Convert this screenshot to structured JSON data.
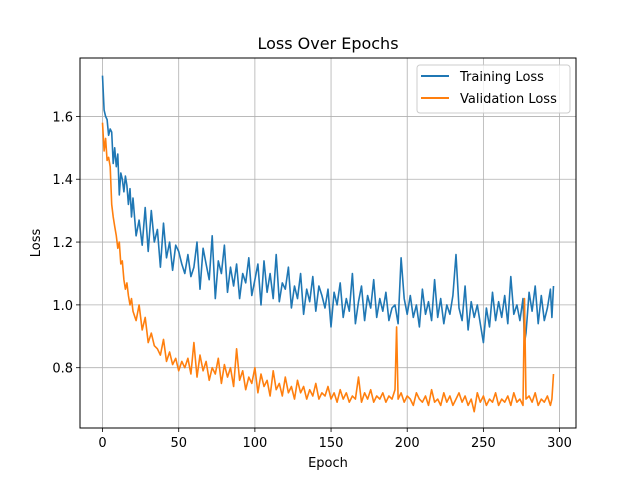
{
  "chart_data": {
    "type": "line",
    "title": "Loss Over Epochs",
    "xlabel": "Epoch",
    "ylabel": "Loss",
    "xlim": [
      -14.8,
      310.8
    ],
    "ylim": [
      0.608,
      1.786
    ],
    "xticks": [
      0,
      50,
      100,
      150,
      200,
      250,
      300
    ],
    "yticks": [
      0.8,
      1.0,
      1.2,
      1.4,
      1.6
    ],
    "xtick_labels": [
      "0",
      "50",
      "100",
      "150",
      "200",
      "250",
      "300"
    ],
    "ytick_labels": [
      "0.8",
      "1.0",
      "1.2",
      "1.4",
      "1.6"
    ],
    "grid": true,
    "legend_position": "top-right",
    "series": [
      {
        "name": "Training Loss",
        "color": "#1f77b4",
        "x": [
          0,
          1,
          2,
          3,
          4,
          5,
          6,
          7,
          8,
          9,
          10,
          11,
          12,
          13,
          14,
          15,
          16,
          17,
          18,
          19,
          20,
          22,
          24,
          26,
          28,
          30,
          32,
          34,
          36,
          38,
          40,
          42,
          44,
          46,
          48,
          50,
          52,
          54,
          56,
          58,
          60,
          62,
          64,
          66,
          68,
          70,
          72,
          74,
          76,
          78,
          80,
          82,
          84,
          86,
          88,
          90,
          92,
          94,
          96,
          98,
          100,
          102,
          104,
          106,
          108,
          110,
          112,
          114,
          116,
          118,
          120,
          122,
          124,
          126,
          128,
          130,
          132,
          134,
          136,
          138,
          140,
          142,
          144,
          146,
          148,
          150,
          152,
          154,
          156,
          158,
          160,
          162,
          164,
          166,
          168,
          170,
          172,
          174,
          176,
          178,
          180,
          182,
          184,
          186,
          188,
          190,
          192,
          194,
          196,
          198,
          200,
          202,
          204,
          206,
          208,
          210,
          212,
          214,
          216,
          218,
          220,
          222,
          224,
          226,
          228,
          230,
          232,
          234,
          236,
          238,
          240,
          242,
          244,
          246,
          248,
          250,
          252,
          254,
          256,
          258,
          260,
          262,
          264,
          266,
          268,
          270,
          272,
          274,
          276,
          277,
          278,
          280,
          282,
          284,
          286,
          288,
          290,
          292,
          294,
          295,
          296
        ],
        "y": [
          1.73,
          1.62,
          1.6,
          1.59,
          1.54,
          1.56,
          1.55,
          1.45,
          1.5,
          1.44,
          1.48,
          1.35,
          1.42,
          1.4,
          1.36,
          1.41,
          1.38,
          1.32,
          1.37,
          1.28,
          1.34,
          1.22,
          1.27,
          1.19,
          1.31,
          1.17,
          1.3,
          1.2,
          1.24,
          1.12,
          1.26,
          1.15,
          1.2,
          1.11,
          1.19,
          1.17,
          1.13,
          1.1,
          1.16,
          1.09,
          1.12,
          1.2,
          1.05,
          1.18,
          1.13,
          1.08,
          1.22,
          1.02,
          1.14,
          1.1,
          1.19,
          1.04,
          1.12,
          1.06,
          1.13,
          1.02,
          1.1,
          1.07,
          1.15,
          1.03,
          1.08,
          1.13,
          1.0,
          1.14,
          1.04,
          1.1,
          1.02,
          1.16,
          1.01,
          1.07,
          1.05,
          1.12,
          0.99,
          1.06,
          1.02,
          1.1,
          0.97,
          1.05,
          1.01,
          1.09,
          0.98,
          1.06,
          1.03,
          0.99,
          1.05,
          0.93,
          1.04,
          1.0,
          1.07,
          0.96,
          1.02,
          0.98,
          1.1,
          0.94,
          1.01,
          1.06,
          0.95,
          1.03,
          0.99,
          1.08,
          0.96,
          1.02,
          0.98,
          1.04,
          0.95,
          0.99,
          1.0,
          0.94,
          1.15,
          1.02,
          0.97,
          1.03,
          0.96,
          1.0,
          0.93,
          1.05,
          0.97,
          1.01,
          0.95,
          1.08,
          0.96,
          1.02,
          0.94,
          1.0,
          0.97,
          1.03,
          1.16,
          0.99,
          0.95,
          1.06,
          0.92,
          1.01,
          0.96,
          1.0,
          0.94,
          0.88,
          0.99,
          0.93,
          1.04,
          0.95,
          1.01,
          0.96,
          1.03,
          0.94,
          1.09,
          0.97,
          1.0,
          0.95,
          1.02,
          0.88,
          0.91,
          1.04,
          0.98,
          1.06,
          0.94,
          1.03,
          0.95,
          0.99,
          1.05,
          0.96,
          1.06
        ]
      },
      {
        "name": "Validation Loss",
        "color": "#ff7f0e",
        "x": [
          0,
          1,
          2,
          3,
          4,
          5,
          6,
          7,
          8,
          9,
          10,
          11,
          12,
          13,
          14,
          15,
          16,
          17,
          18,
          19,
          20,
          22,
          24,
          26,
          28,
          30,
          32,
          34,
          36,
          38,
          40,
          42,
          44,
          46,
          48,
          50,
          52,
          54,
          56,
          58,
          60,
          62,
          64,
          66,
          68,
          70,
          72,
          74,
          76,
          78,
          80,
          82,
          84,
          86,
          88,
          90,
          92,
          94,
          96,
          98,
          100,
          102,
          104,
          106,
          108,
          110,
          112,
          114,
          116,
          118,
          120,
          122,
          124,
          126,
          128,
          130,
          132,
          134,
          136,
          138,
          140,
          142,
          144,
          146,
          148,
          150,
          152,
          154,
          156,
          158,
          160,
          162,
          164,
          166,
          168,
          170,
          172,
          174,
          176,
          178,
          180,
          182,
          184,
          186,
          188,
          190,
          192,
          193,
          194,
          196,
          198,
          200,
          202,
          204,
          206,
          208,
          210,
          212,
          214,
          216,
          218,
          220,
          222,
          224,
          226,
          228,
          230,
          232,
          234,
          236,
          238,
          240,
          242,
          244,
          246,
          248,
          250,
          252,
          254,
          256,
          258,
          260,
          262,
          264,
          266,
          268,
          270,
          272,
          274,
          276,
          277,
          278,
          280,
          282,
          284,
          286,
          288,
          290,
          292,
          294,
          295,
          296
        ],
        "y": [
          1.58,
          1.49,
          1.53,
          1.46,
          1.47,
          1.44,
          1.32,
          1.28,
          1.25,
          1.22,
          1.18,
          1.2,
          1.13,
          1.14,
          1.08,
          1.05,
          1.07,
          1.03,
          1.0,
          1.02,
          0.98,
          0.95,
          1.0,
          0.92,
          0.96,
          0.88,
          0.91,
          0.87,
          0.86,
          0.84,
          0.89,
          0.82,
          0.85,
          0.81,
          0.83,
          0.79,
          0.82,
          0.8,
          0.83,
          0.78,
          0.88,
          0.77,
          0.84,
          0.79,
          0.82,
          0.76,
          0.8,
          0.78,
          0.83,
          0.75,
          0.81,
          0.77,
          0.8,
          0.74,
          0.86,
          0.76,
          0.79,
          0.73,
          0.77,
          0.75,
          0.8,
          0.72,
          0.78,
          0.74,
          0.76,
          0.71,
          0.79,
          0.73,
          0.75,
          0.71,
          0.77,
          0.72,
          0.74,
          0.7,
          0.76,
          0.72,
          0.74,
          0.7,
          0.73,
          0.71,
          0.75,
          0.7,
          0.72,
          0.71,
          0.74,
          0.7,
          0.72,
          0.69,
          0.73,
          0.7,
          0.72,
          0.69,
          0.71,
          0.7,
          0.77,
          0.69,
          0.72,
          0.7,
          0.73,
          0.69,
          0.71,
          0.7,
          0.72,
          0.69,
          0.71,
          0.7,
          0.73,
          0.93,
          0.7,
          0.72,
          0.69,
          0.71,
          0.7,
          0.68,
          0.72,
          0.7,
          0.69,
          0.71,
          0.68,
          0.73,
          0.69,
          0.7,
          0.68,
          0.72,
          0.69,
          0.71,
          0.68,
          0.7,
          0.72,
          0.69,
          0.71,
          0.68,
          0.7,
          0.66,
          0.72,
          0.69,
          0.71,
          0.68,
          0.7,
          0.69,
          0.72,
          0.68,
          0.7,
          0.69,
          0.71,
          0.68,
          0.72,
          0.69,
          0.7,
          0.68,
          1.02,
          0.7,
          0.71,
          0.69,
          0.72,
          0.68,
          0.7,
          0.69,
          0.71,
          0.68,
          0.7,
          0.78
        ]
      }
    ]
  }
}
